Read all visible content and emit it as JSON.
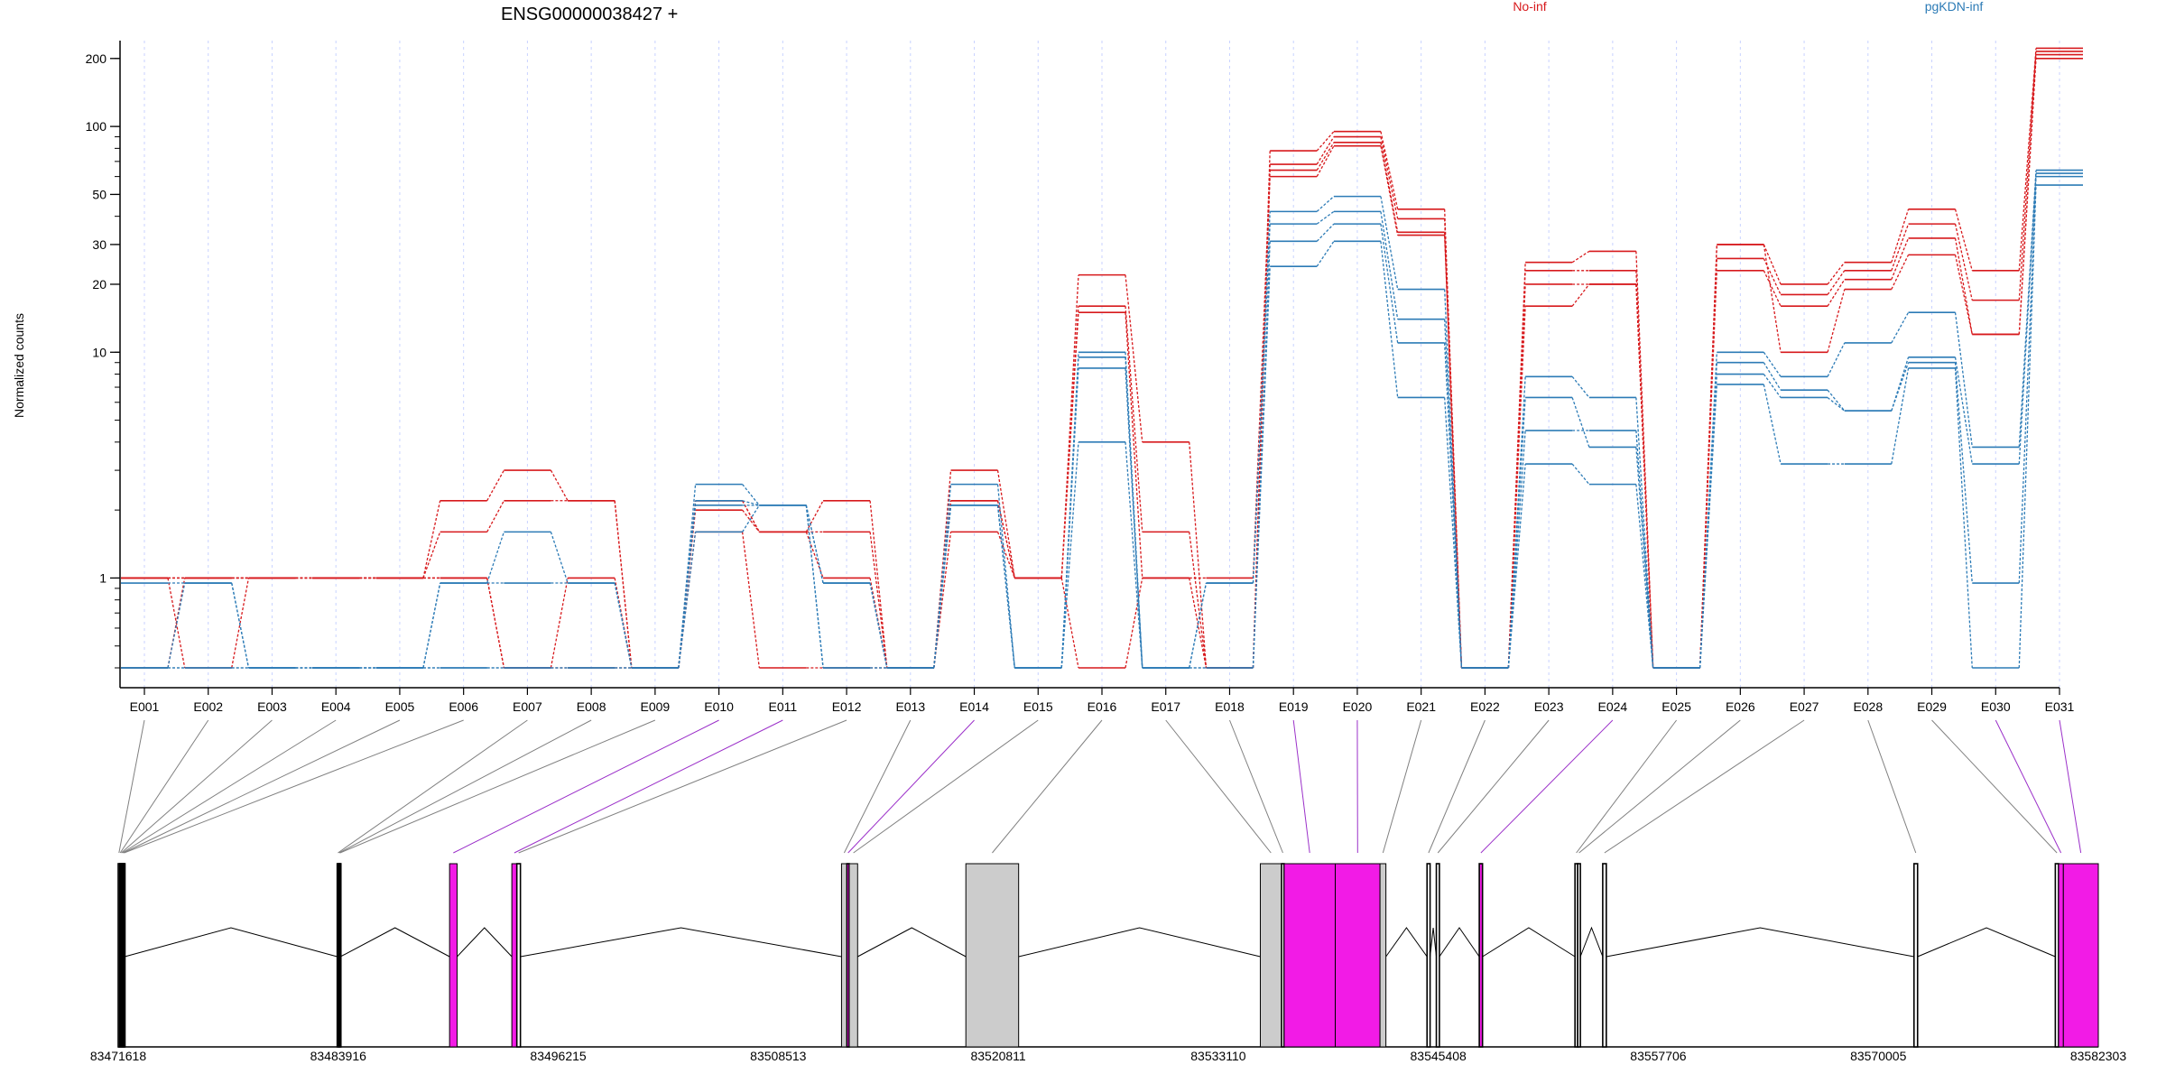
{
  "chart_data": {
    "type": "line",
    "title": "ENSG00000038427 +",
    "ylabel": "Normalized counts",
    "yscale": "log",
    "ylim": [
      0.4,
      240
    ],
    "yticks": [
      1,
      10,
      20,
      30,
      50,
      100,
      200
    ],
    "ytick_labels": [
      "1",
      "10",
      "20",
      "30",
      "50",
      "100",
      "200"
    ],
    "grid": true,
    "legend_position": "top-center",
    "categories": [
      "E001",
      "E002",
      "E003",
      "E004",
      "E005",
      "E006",
      "E007",
      "E008",
      "E009",
      "E010",
      "E011",
      "E012",
      "E013",
      "E014",
      "E015",
      "E016",
      "E017",
      "E018",
      "E019",
      "E020",
      "E021",
      "E022",
      "E023",
      "E024",
      "E025",
      "E026",
      "E027",
      "E028",
      "E029",
      "E030",
      "E031"
    ],
    "zero_value": 0.4,
    "groups": [
      {
        "name": "No-inf",
        "color": "#d7191c"
      },
      {
        "name": "pgKDN-inf",
        "color": "#2c7bb6"
      }
    ],
    "series": [
      {
        "group": "No-inf",
        "values": [
          1.0,
          1.0,
          1.0,
          1.0,
          1.0,
          2.2,
          3.0,
          2.2,
          0.4,
          2.2,
          1.6,
          2.2,
          0.4,
          3.0,
          1.0,
          22,
          4.0,
          0.4,
          78,
          95,
          43,
          0.4,
          25,
          28,
          0.4,
          30,
          20,
          25,
          43,
          23,
          222
        ]
      },
      {
        "group": "No-inf",
        "values": [
          1.0,
          1.0,
          1.0,
          1.0,
          1.0,
          1.6,
          2.2,
          2.2,
          0.4,
          2.2,
          1.6,
          1.6,
          0.4,
          2.2,
          1.0,
          16,
          1.6,
          0.4,
          68,
          90,
          39,
          0.4,
          23,
          23,
          0.4,
          26,
          18,
          23,
          37,
          17,
          215
        ]
      },
      {
        "group": "No-inf",
        "values": [
          0.4,
          1.0,
          1.0,
          1.0,
          1.0,
          1.0,
          0.4,
          1.0,
          0.4,
          2.0,
          1.6,
          1.0,
          0.4,
          2.2,
          1.0,
          15,
          1.0,
          1.0,
          64,
          85,
          34,
          0.4,
          20,
          20,
          0.4,
          23,
          16,
          21,
          32,
          12,
          208
        ]
      },
      {
        "group": "No-inf",
        "values": [
          1.0,
          0.4,
          1.0,
          1.0,
          1.0,
          1.0,
          0.4,
          0.4,
          0.4,
          1.6,
          0.4,
          0.4,
          0.4,
          1.6,
          1.0,
          0.4,
          1.0,
          0.4,
          60,
          82,
          33,
          0.4,
          16,
          20,
          0.4,
          30,
          10,
          19,
          27,
          12,
          200
        ]
      },
      {
        "group": "pgKDN-inf",
        "values": [
          0.95,
          0.95,
          0.4,
          0.4,
          0.4,
          0.95,
          0.95,
          0.95,
          0.4,
          2.6,
          2.1,
          0.95,
          0.4,
          2.6,
          0.4,
          10,
          0.4,
          0.95,
          42,
          49,
          19,
          0.4,
          7.8,
          6.3,
          0.4,
          10,
          7.8,
          11,
          15,
          3.8,
          64
        ]
      },
      {
        "group": "pgKDN-inf",
        "values": [
          0.4,
          0.95,
          0.4,
          0.4,
          0.4,
          0.95,
          1.6,
          0.95,
          0.4,
          2.2,
          2.1,
          0.95,
          0.4,
          2.1,
          0.4,
          9.5,
          0.4,
          0.95,
          37,
          42,
          14,
          0.4,
          6.3,
          3.8,
          0.4,
          9.0,
          6.8,
          5.5,
          9.5,
          3.2,
          62
        ]
      },
      {
        "group": "pgKDN-inf",
        "values": [
          0.4,
          0.4,
          0.4,
          0.4,
          0.4,
          0.4,
          0.4,
          0.4,
          0.4,
          2.1,
          2.1,
          0.4,
          0.4,
          2.1,
          0.4,
          8.5,
          0.4,
          0.4,
          31,
          37,
          11,
          0.4,
          4.5,
          4.5,
          0.4,
          8.0,
          6.3,
          5.5,
          9.0,
          0.95,
          60
        ]
      },
      {
        "group": "pgKDN-inf",
        "values": [
          0.4,
          0.4,
          0.4,
          0.4,
          0.4,
          0.4,
          0.4,
          0.4,
          0.4,
          1.6,
          2.1,
          0.4,
          0.4,
          2.1,
          0.4,
          4.0,
          0.4,
          0.4,
          24,
          31,
          6.3,
          0.4,
          3.2,
          2.6,
          0.4,
          7.2,
          3.2,
          3.2,
          8.5,
          0.4,
          55
        ]
      }
    ]
  },
  "gene_model": {
    "axis_labels": [
      "83471618",
      "83483916",
      "83496215",
      "83508513",
      "83520811",
      "83533110",
      "83545408",
      "83557706",
      "83570005",
      "83582303"
    ],
    "colors": {
      "significant": "#f21be6",
      "normal": "#cccccc",
      "line": "#000000",
      "highlight_connector": "#9b30c9",
      "connector": "#808080"
    },
    "bins": [
      {
        "exon": "E001",
        "start": 83471618,
        "end": 83471700,
        "status": "normal"
      },
      {
        "exon": "E002",
        "start": 83471700,
        "end": 83471760,
        "status": "normal"
      },
      {
        "exon": "E003",
        "start": 83471760,
        "end": 83471820,
        "status": "normal"
      },
      {
        "exon": "E004",
        "start": 83471820,
        "end": 83471870,
        "status": "normal"
      },
      {
        "exon": "E005",
        "start": 83471870,
        "end": 83471920,
        "status": "normal"
      },
      {
        "exon": "E006",
        "start": 83471920,
        "end": 83471980,
        "status": "normal"
      },
      {
        "exon": "E007",
        "start": 83483860,
        "end": 83483940,
        "status": "normal"
      },
      {
        "exon": "E008",
        "start": 83483940,
        "end": 83483990,
        "status": "normal"
      },
      {
        "exon": "E009",
        "start": 83483990,
        "end": 83484040,
        "status": "normal"
      },
      {
        "exon": "E010",
        "start": 83490140,
        "end": 83490560,
        "status": "significant"
      },
      {
        "exon": "E011",
        "start": 83493620,
        "end": 83493900,
        "status": "significant"
      },
      {
        "exon": "E012",
        "start": 83493900,
        "end": 83494100,
        "status": "normal"
      },
      {
        "exon": "E013",
        "start": 83512050,
        "end": 83512350,
        "status": "normal"
      },
      {
        "exon": "E014",
        "start": 83512350,
        "end": 83512480,
        "status": "significant"
      },
      {
        "exon": "E015",
        "start": 83512480,
        "end": 83512950,
        "status": "normal"
      },
      {
        "exon": "E016",
        "start": 83519000,
        "end": 83521950,
        "status": "normal"
      },
      {
        "exon": "E017",
        "start": 83535460,
        "end": 83536650,
        "status": "normal"
      },
      {
        "exon": "E018",
        "start": 83536650,
        "end": 83536790,
        "status": "normal"
      },
      {
        "exon": "E019",
        "start": 83536790,
        "end": 83539650,
        "status": "significant"
      },
      {
        "exon": "E020",
        "start": 83539650,
        "end": 83542150,
        "status": "significant"
      },
      {
        "exon": "E021",
        "start": 83542150,
        "end": 83542480,
        "status": "normal"
      },
      {
        "exon": "E022",
        "start": 83544780,
        "end": 83544950,
        "status": "normal"
      },
      {
        "exon": "E023",
        "start": 83545300,
        "end": 83545470,
        "status": "normal"
      },
      {
        "exon": "E024",
        "start": 83547700,
        "end": 83547880,
        "status": "significant"
      },
      {
        "exon": "E025",
        "start": 83553050,
        "end": 83553200,
        "status": "normal"
      },
      {
        "exon": "E026",
        "start": 83553200,
        "end": 83553350,
        "status": "normal"
      },
      {
        "exon": "E027",
        "start": 83554600,
        "end": 83554800,
        "status": "normal"
      },
      {
        "exon": "E028",
        "start": 83572000,
        "end": 83572200,
        "status": "normal"
      },
      {
        "exon": "E029",
        "start": 83579900,
        "end": 83580080,
        "status": "normal"
      },
      {
        "exon": "E030",
        "start": 83580080,
        "end": 83580350,
        "status": "significant"
      },
      {
        "exon": "E031",
        "start": 83580350,
        "end": 83582303,
        "status": "significant"
      }
    ]
  }
}
